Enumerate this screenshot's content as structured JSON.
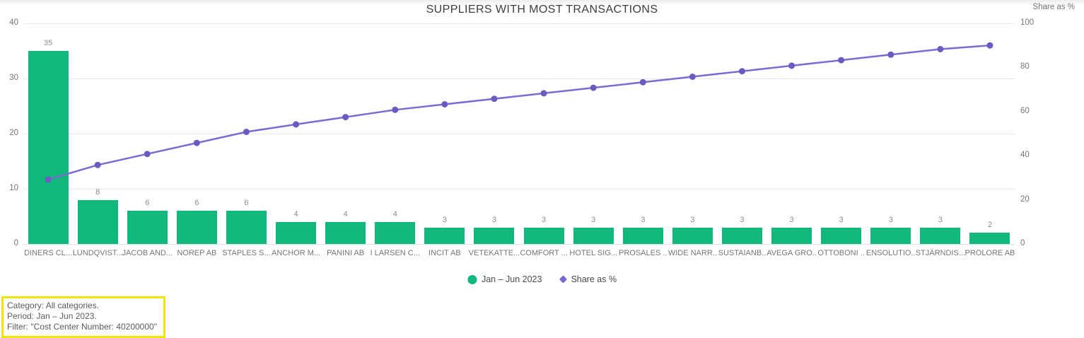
{
  "title": "SUPPLIERS WITH MOST TRANSACTIONS",
  "right_axis_title": "Share as %",
  "colors": {
    "bar": "#10b87b",
    "line": "#7c6bd0",
    "marker": "#6a5ac1",
    "annotation_border": "#f2e40a",
    "axis_text": "#757575",
    "gridline": "#e9e9e9"
  },
  "legend": {
    "items": [
      {
        "label": "Jan – Jun 2023",
        "shape": "circle",
        "color": "#10b87b"
      },
      {
        "label": "Share as %",
        "shape": "diamond",
        "color": "#7b68ce"
      }
    ]
  },
  "annotation": {
    "lines": [
      "Category: All categories.",
      "Period: Jan – Jun 2023.",
      "Filter: \"Cost Center Number: 40200000\""
    ]
  },
  "chart_data": {
    "type": "bar",
    "subtype": "pareto (bar + cumulative line)",
    "title": "SUPPLIERS WITH MOST TRANSACTIONS",
    "categories": [
      "DINERS CL...",
      "LUNDQVIST...",
      "JACOB AND...",
      "NOREP AB",
      "STAPLES S...",
      "ANCHOR M...",
      "PANINI AB",
      "I LARSEN C...",
      "INCIT AB",
      "VETEKATTE...",
      "COMFORT ...",
      "HOTEL SIG...",
      "PROSALES ..",
      "WIDE NARR..",
      "SUSTAIANB..",
      "AVEGA GRO..",
      "OTTOBONI ..",
      "ENSOLUTIO..",
      "STJÄRNDIS...",
      "PROLORE AB"
    ],
    "series": [
      {
        "name": "Jan – Jun 2023",
        "type": "bar",
        "axis": "left",
        "color": "#10b87b",
        "values": [
          35,
          8,
          6,
          6,
          6,
          4,
          4,
          4,
          3,
          3,
          3,
          3,
          3,
          3,
          3,
          3,
          3,
          3,
          3,
          2
        ],
        "labels_shown": true
      },
      {
        "name": "Share as %",
        "type": "line",
        "axis": "right",
        "color": "#7c6bd0",
        "values": [
          29.2,
          35.8,
          40.8,
          45.8,
          50.8,
          54.2,
          57.5,
          60.8,
          63.3,
          65.8,
          68.3,
          70.8,
          73.3,
          75.8,
          78.3,
          80.8,
          83.3,
          85.8,
          88.3,
          90.0
        ],
        "labels_shown": false
      }
    ],
    "left_axis": {
      "ticks": [
        0,
        10,
        20,
        30,
        40
      ],
      "range": [
        0,
        40
      ],
      "label": ""
    },
    "right_axis": {
      "ticks": [
        0,
        20,
        40,
        60,
        80,
        100
      ],
      "range": [
        0,
        100
      ],
      "label": "Share as %"
    },
    "grid": true,
    "legend_position": "bottom-center"
  }
}
